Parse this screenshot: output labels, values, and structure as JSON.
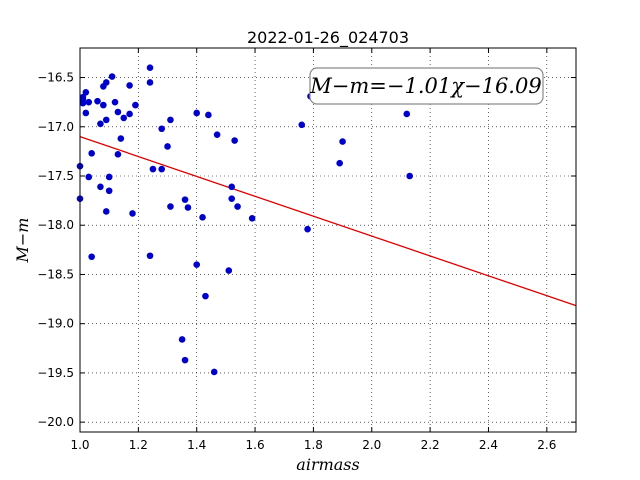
{
  "chart_data": {
    "type": "scatter",
    "title": "2022-01-26_024703",
    "xlabel": "airmass",
    "ylabel": "M−m",
    "annotation": "M−m=−1.01χ−16.09",
    "xlim": [
      1.0,
      2.7
    ],
    "ylim": [
      -20.1,
      -16.2
    ],
    "y_inverted": true,
    "grid": true,
    "x_ticks": [
      "1.0",
      "1.2",
      "1.4",
      "1.6",
      "1.8",
      "2.0",
      "2.2",
      "2.4",
      "2.6"
    ],
    "y_ticks": [
      "−16.5",
      "−17.0",
      "−17.5",
      "−18.0",
      "−18.5",
      "−19.0",
      "−19.5",
      "−20.0"
    ],
    "series": [
      {
        "marker_color": "#0000cc",
        "points": [
          [
            1.0,
            -17.4
          ],
          [
            1.0,
            -17.73
          ],
          [
            1.01,
            -16.72
          ],
          [
            1.01,
            -16.76
          ],
          [
            1.01,
            -16.7
          ],
          [
            1.02,
            -16.65
          ],
          [
            1.02,
            -16.86
          ],
          [
            1.03,
            -16.75
          ],
          [
            1.03,
            -17.51
          ],
          [
            1.04,
            -17.27
          ],
          [
            1.04,
            -18.32
          ],
          [
            1.06,
            -16.74
          ],
          [
            1.07,
            -16.97
          ],
          [
            1.07,
            -17.61
          ],
          [
            1.08,
            -16.59
          ],
          [
            1.08,
            -16.78
          ],
          [
            1.09,
            -16.93
          ],
          [
            1.09,
            -17.86
          ],
          [
            1.09,
            -16.55
          ],
          [
            1.1,
            -17.51
          ],
          [
            1.1,
            -17.65
          ],
          [
            1.11,
            -16.49
          ],
          [
            1.12,
            -16.75
          ],
          [
            1.13,
            -16.85
          ],
          [
            1.13,
            -17.28
          ],
          [
            1.14,
            -17.12
          ],
          [
            1.15,
            -16.91
          ],
          [
            1.17,
            -16.58
          ],
          [
            1.17,
            -16.87
          ],
          [
            1.18,
            -17.88
          ],
          [
            1.19,
            -16.78
          ],
          [
            1.24,
            -16.4
          ],
          [
            1.24,
            -16.55
          ],
          [
            1.24,
            -18.31
          ],
          [
            1.25,
            -17.43
          ],
          [
            1.28,
            -17.43
          ],
          [
            1.28,
            -17.02
          ],
          [
            1.3,
            -17.2
          ],
          [
            1.31,
            -16.93
          ],
          [
            1.31,
            -17.81
          ],
          [
            1.35,
            -19.16
          ],
          [
            1.36,
            -19.37
          ],
          [
            1.36,
            -17.74
          ],
          [
            1.37,
            -17.82
          ],
          [
            1.4,
            -16.86
          ],
          [
            1.4,
            -18.4
          ],
          [
            1.42,
            -17.92
          ],
          [
            1.43,
            -18.72
          ],
          [
            1.44,
            -16.88
          ],
          [
            1.46,
            -19.49
          ],
          [
            1.47,
            -17.08
          ],
          [
            1.51,
            -18.46
          ],
          [
            1.52,
            -17.61
          ],
          [
            1.52,
            -17.73
          ],
          [
            1.53,
            -17.14
          ],
          [
            1.54,
            -17.81
          ],
          [
            1.59,
            -17.93
          ],
          [
            1.76,
            -16.98
          ],
          [
            1.78,
            -18.04
          ],
          [
            1.79,
            -16.69
          ],
          [
            1.89,
            -17.37
          ],
          [
            1.9,
            -17.15
          ],
          [
            2.12,
            -16.87
          ],
          [
            2.13,
            -17.5
          ]
        ]
      }
    ],
    "fit_line": {
      "slope": -1.01,
      "intercept": -16.09,
      "color": "#dd0000"
    }
  }
}
